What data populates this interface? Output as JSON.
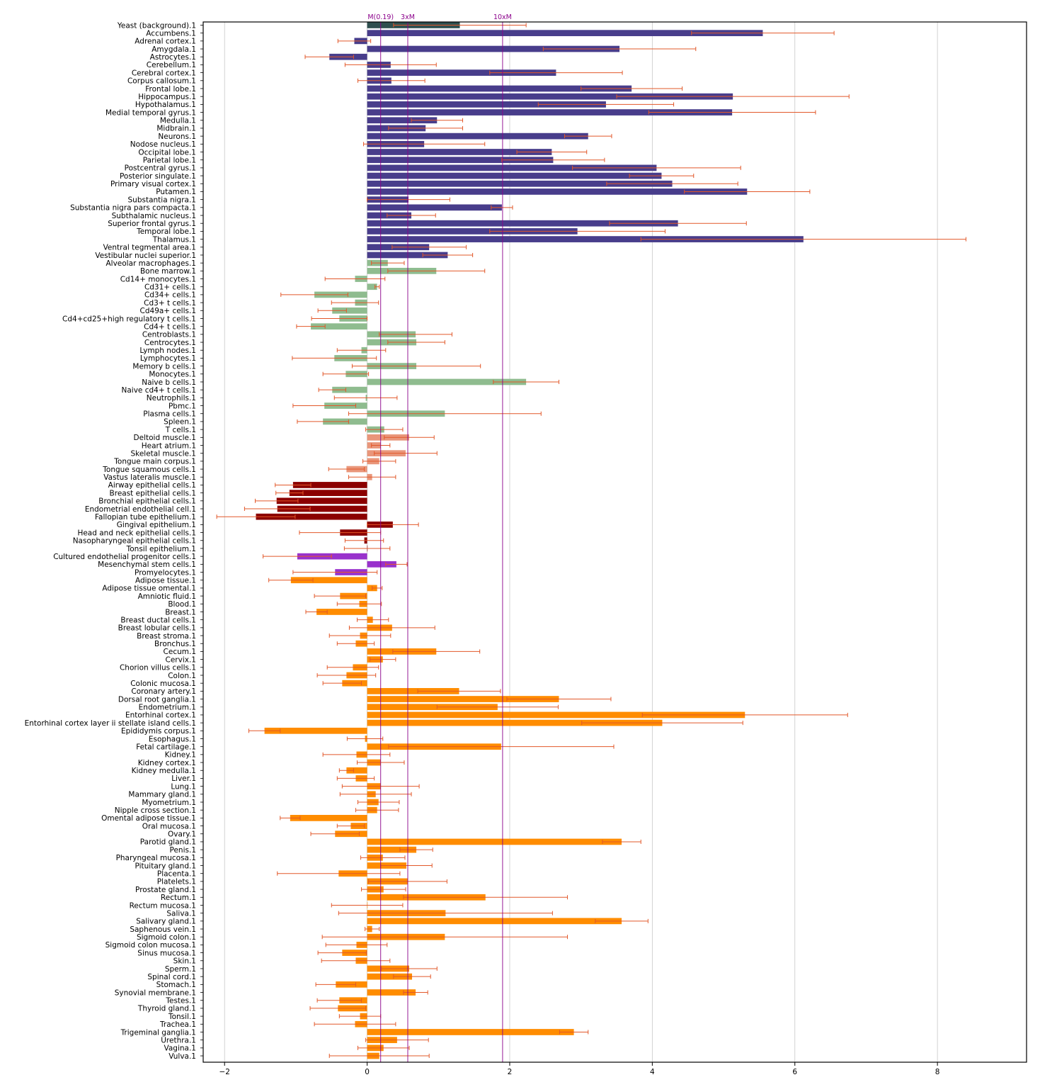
{
  "chart_data": {
    "type": "bar",
    "orientation": "horizontal",
    "title": "",
    "xlabel": "",
    "ylabel": "",
    "xlim": [
      -2.3,
      9.25
    ],
    "x_ticks": [
      -2,
      0,
      2,
      4,
      6,
      8
    ],
    "grid": "vertical",
    "legend": "none",
    "colors": {
      "background": "#2f4f4f",
      "brain": "#483d8b",
      "immune": "#8fbc8f",
      "muscle": "#e9967a",
      "epithelial": "#8b0000",
      "stem": "#9932cc",
      "other": "#ff8c00",
      "error": "#e2582a",
      "reference": "#8b008b",
      "grid": "#c8c8c8"
    },
    "reference_lines": [
      {
        "label": "M(0.19)",
        "x": 0.19
      },
      {
        "label": "3xM",
        "x": 0.57
      },
      {
        "label": "10xM",
        "x": 1.9
      }
    ],
    "bars": [
      {
        "label": "Yeast (background).1",
        "value": 1.3,
        "err": 0.93,
        "group": "background"
      },
      {
        "label": "Accumbens.1",
        "value": 5.55,
        "err": 1.0,
        "group": "brain"
      },
      {
        "label": "Adrenal cortex.1",
        "value": -0.18,
        "err": 0.23,
        "group": "brain"
      },
      {
        "label": "Amygdala.1",
        "value": 3.54,
        "err": 1.07,
        "group": "brain"
      },
      {
        "label": "Astrocytes.1",
        "value": -0.53,
        "err": 0.34,
        "group": "brain"
      },
      {
        "label": "Cerebellum.1",
        "value": 0.33,
        "err": 0.64,
        "group": "brain"
      },
      {
        "label": "Cerebral cortex.1",
        "value": 2.65,
        "err": 0.93,
        "group": "brain"
      },
      {
        "label": "Corpus callosum.1",
        "value": 0.34,
        "err": 0.47,
        "group": "brain"
      },
      {
        "label": "Frontal lobe.1",
        "value": 3.71,
        "err": 0.71,
        "group": "brain"
      },
      {
        "label": "Hippocampus.1",
        "value": 5.13,
        "err": 1.63,
        "group": "brain"
      },
      {
        "label": "Hypothalamus.1",
        "value": 3.35,
        "err": 0.95,
        "group": "brain"
      },
      {
        "label": "Medial temporal gyrus.1",
        "value": 5.12,
        "err": 1.17,
        "group": "brain"
      },
      {
        "label": "Medulla.1",
        "value": 0.98,
        "err": 0.36,
        "group": "brain"
      },
      {
        "label": "Midbrain.1",
        "value": 0.82,
        "err": 0.52,
        "group": "brain"
      },
      {
        "label": "Neurons.1",
        "value": 3.1,
        "err": 0.33,
        "group": "brain"
      },
      {
        "label": "Nodose nucleus.1",
        "value": 0.8,
        "err": 0.85,
        "group": "brain"
      },
      {
        "label": "Occipital lobe.1",
        "value": 2.59,
        "err": 0.49,
        "group": "brain"
      },
      {
        "label": "Parietal lobe.1",
        "value": 2.61,
        "err": 0.72,
        "group": "brain"
      },
      {
        "label": "Postcentral gyrus.1",
        "value": 4.06,
        "err": 1.18,
        "group": "brain"
      },
      {
        "label": "Posterior singulate.1",
        "value": 4.13,
        "err": 0.45,
        "group": "brain"
      },
      {
        "label": "Primary visual cortex.1",
        "value": 4.28,
        "err": 0.92,
        "group": "brain"
      },
      {
        "label": "Putamen.1",
        "value": 5.33,
        "err": 0.88,
        "group": "brain"
      },
      {
        "label": "Substantia nigra.1",
        "value": 0.58,
        "err": 0.58,
        "group": "brain"
      },
      {
        "label": "Substantia nigra pars compacta.1",
        "value": 1.89,
        "err": 0.15,
        "group": "brain"
      },
      {
        "label": "Subthalamic nucleus.1",
        "value": 0.62,
        "err": 0.34,
        "group": "brain"
      },
      {
        "label": "Superior frontal gyrus.1",
        "value": 4.36,
        "err": 0.96,
        "group": "brain"
      },
      {
        "label": "Temporal lobe.1",
        "value": 2.95,
        "err": 1.23,
        "group": "brain"
      },
      {
        "label": "Thalamus.1",
        "value": 6.12,
        "err": 2.28,
        "group": "brain"
      },
      {
        "label": "Ventral tegmental area.1",
        "value": 0.87,
        "err": 0.52,
        "group": "brain"
      },
      {
        "label": "Vestibular nuclei superior.1",
        "value": 1.13,
        "err": 0.35,
        "group": "brain"
      },
      {
        "label": "Alveolar macrophages.1",
        "value": 0.29,
        "err": 0.23,
        "group": "immune"
      },
      {
        "label": "Bone marrow.1",
        "value": 0.97,
        "err": 0.68,
        "group": "immune"
      },
      {
        "label": "Cd14+ monocytes.1",
        "value": -0.17,
        "err": 0.42,
        "group": "immune"
      },
      {
        "label": "Cd31+ cells.1",
        "value": 0.14,
        "err": 0.03,
        "group": "immune"
      },
      {
        "label": "Cd34+ cells.1",
        "value": -0.74,
        "err": 0.47,
        "group": "immune"
      },
      {
        "label": "Cd3+ t cells.1",
        "value": -0.17,
        "err": 0.33,
        "group": "immune"
      },
      {
        "label": "Cd49a+ cells.1",
        "value": -0.49,
        "err": 0.2,
        "group": "immune"
      },
      {
        "label": "Cd4+cd25+high regulatory t cells.1",
        "value": -0.39,
        "err": 0.39,
        "group": "immune"
      },
      {
        "label": "Cd4+ t cells.1",
        "value": -0.79,
        "err": 0.2,
        "group": "immune"
      },
      {
        "label": "Centroblasts.1",
        "value": 0.68,
        "err": 0.51,
        "group": "immune"
      },
      {
        "label": "Centrocytes.1",
        "value": 0.69,
        "err": 0.4,
        "group": "immune"
      },
      {
        "label": "Lymph nodes.1",
        "value": -0.08,
        "err": 0.34,
        "group": "immune"
      },
      {
        "label": "Lymphocytes.1",
        "value": -0.46,
        "err": 0.59,
        "group": "immune"
      },
      {
        "label": "Memory b cells.1",
        "value": 0.69,
        "err": 0.9,
        "group": "immune"
      },
      {
        "label": "Monocytes.1",
        "value": -0.3,
        "err": 0.32,
        "group": "immune"
      },
      {
        "label": "Naive b cells.1",
        "value": 2.23,
        "err": 0.46,
        "group": "immune"
      },
      {
        "label": "Naive cd4+ t cells.1",
        "value": -0.49,
        "err": 0.19,
        "group": "immune"
      },
      {
        "label": "Neutrophils.1",
        "value": -0.02,
        "err": 0.44,
        "group": "immune"
      },
      {
        "label": "Pbmc.1",
        "value": -0.6,
        "err": 0.44,
        "group": "immune"
      },
      {
        "label": "Plasma cells.1",
        "value": 1.09,
        "err": 1.35,
        "group": "immune"
      },
      {
        "label": "Spleen.1",
        "value": -0.62,
        "err": 0.36,
        "group": "immune"
      },
      {
        "label": "T cells.1",
        "value": 0.24,
        "err": 0.26,
        "group": "immune"
      },
      {
        "label": "Deltoid muscle.1",
        "value": 0.59,
        "err": 0.35,
        "group": "muscle"
      },
      {
        "label": "Heart atrium.1",
        "value": 0.19,
        "err": 0.13,
        "group": "muscle"
      },
      {
        "label": "Skeletal muscle.1",
        "value": 0.54,
        "err": 0.44,
        "group": "muscle"
      },
      {
        "label": "Tongue main corpus.1",
        "value": 0.17,
        "err": 0.23,
        "group": "muscle"
      },
      {
        "label": "Tongue squamous cells.1",
        "value": -0.29,
        "err": 0.25,
        "group": "muscle"
      },
      {
        "label": "Vastus lateralis muscle.1",
        "value": 0.07,
        "err": 0.33,
        "group": "muscle"
      },
      {
        "label": "Airway epithelial cells.1",
        "value": -1.04,
        "err": 0.25,
        "group": "epithelial"
      },
      {
        "label": "Breast epithelial cells.1",
        "value": -1.09,
        "err": 0.19,
        "group": "epithelial"
      },
      {
        "label": "Bronchial epithelial cells.1",
        "value": -1.27,
        "err": 0.3,
        "group": "epithelial"
      },
      {
        "label": "Endometrial endothelial cell.1",
        "value": -1.26,
        "err": 0.46,
        "group": "epithelial"
      },
      {
        "label": "Fallopian tube epithelium.1",
        "value": -1.56,
        "err": 0.55,
        "group": "epithelial"
      },
      {
        "label": "Gingival epithelium.1",
        "value": 0.36,
        "err": 0.36,
        "group": "epithelial"
      },
      {
        "label": "Head and neck epithelial cells.1",
        "value": -0.38,
        "err": 0.57,
        "group": "epithelial"
      },
      {
        "label": "Nasopharyngeal epithelial cells.1",
        "value": -0.04,
        "err": 0.27,
        "group": "epithelial"
      },
      {
        "label": "Tonsil epithelium.1",
        "value": 0.0,
        "err": 0.32,
        "group": "epithelial"
      },
      {
        "label": "Cultured endothelial progenitor cells.1",
        "value": -0.98,
        "err": 0.48,
        "group": "stem"
      },
      {
        "label": "Mesenchymal stem cells.1",
        "value": 0.41,
        "err": 0.15,
        "group": "stem"
      },
      {
        "label": "Promyelocytes.1",
        "value": -0.45,
        "err": 0.59,
        "group": "stem"
      },
      {
        "label": "Adipose tissue.1",
        "value": -1.07,
        "err": 0.31,
        "group": "other"
      },
      {
        "label": "Adipose tissue omental.1",
        "value": 0.14,
        "err": 0.07,
        "group": "other"
      },
      {
        "label": "Amniotic fluid.1",
        "value": -0.38,
        "err": 0.36,
        "group": "other"
      },
      {
        "label": "Blood.1",
        "value": -0.11,
        "err": 0.31,
        "group": "other"
      },
      {
        "label": "Breast.1",
        "value": -0.71,
        "err": 0.15,
        "group": "other"
      },
      {
        "label": "Breast ductal cells.1",
        "value": 0.08,
        "err": 0.22,
        "group": "other"
      },
      {
        "label": "Breast lobular cells.1",
        "value": 0.35,
        "err": 0.6,
        "group": "other"
      },
      {
        "label": "Breast stroma.1",
        "value": -0.1,
        "err": 0.43,
        "group": "other"
      },
      {
        "label": "Bronchus.1",
        "value": -0.16,
        "err": 0.26,
        "group": "other"
      },
      {
        "label": "Cecum.1",
        "value": 0.97,
        "err": 0.61,
        "group": "other"
      },
      {
        "label": "Cervix.1",
        "value": 0.22,
        "err": 0.18,
        "group": "other"
      },
      {
        "label": "Chorion villus cells.1",
        "value": -0.2,
        "err": 0.36,
        "group": "other"
      },
      {
        "label": "Colon.1",
        "value": -0.29,
        "err": 0.41,
        "group": "other"
      },
      {
        "label": "Colonic mucosa.1",
        "value": -0.35,
        "err": 0.27,
        "group": "other"
      },
      {
        "label": "Coronary artery.1",
        "value": 1.29,
        "err": 0.58,
        "group": "other"
      },
      {
        "label": "Dorsal root ganglia.1",
        "value": 2.69,
        "err": 0.73,
        "group": "other"
      },
      {
        "label": "Endometrium.1",
        "value": 1.83,
        "err": 0.85,
        "group": "other"
      },
      {
        "label": "Entorhinal cortex.1",
        "value": 5.3,
        "err": 1.44,
        "group": "other"
      },
      {
        "label": "Entorhinal cortex layer ii stellate island cells.1",
        "value": 4.14,
        "err": 1.13,
        "group": "other"
      },
      {
        "label": "Epididymis corpus.1",
        "value": -1.44,
        "err": 0.22,
        "group": "other"
      },
      {
        "label": "Esophagus.1",
        "value": -0.03,
        "err": 0.25,
        "group": "other"
      },
      {
        "label": "Fetal cartilage.1",
        "value": 1.88,
        "err": 1.58,
        "group": "other"
      },
      {
        "label": "Kidney.1",
        "value": -0.15,
        "err": 0.47,
        "group": "other"
      },
      {
        "label": "Kidney cortex.1",
        "value": 0.19,
        "err": 0.33,
        "group": "other"
      },
      {
        "label": "Kidney medulla.1",
        "value": -0.29,
        "err": 0.1,
        "group": "other"
      },
      {
        "label": "Liver.1",
        "value": -0.16,
        "err": 0.26,
        "group": "other"
      },
      {
        "label": "Lung.1",
        "value": 0.19,
        "err": 0.54,
        "group": "other"
      },
      {
        "label": "Mammary gland.1",
        "value": 0.12,
        "err": 0.5,
        "group": "other"
      },
      {
        "label": "Myometrium.1",
        "value": 0.16,
        "err": 0.29,
        "group": "other"
      },
      {
        "label": "Nipple cross section.1",
        "value": 0.14,
        "err": 0.3,
        "group": "other"
      },
      {
        "label": "Omental adipose tissue.1",
        "value": -1.08,
        "err": 0.14,
        "group": "other"
      },
      {
        "label": "Oral mucosa.1",
        "value": -0.23,
        "err": 0.19,
        "group": "other"
      },
      {
        "label": "Ovary.1",
        "value": -0.45,
        "err": 0.34,
        "group": "other"
      },
      {
        "label": "Parotid gland.1",
        "value": 3.57,
        "err": 0.27,
        "group": "other"
      },
      {
        "label": "Penis.1",
        "value": 0.69,
        "err": 0.23,
        "group": "other"
      },
      {
        "label": "Pharyngeal mucosa.1",
        "value": 0.22,
        "err": 0.31,
        "group": "other"
      },
      {
        "label": "Pituitary gland.1",
        "value": 0.55,
        "err": 0.36,
        "group": "other"
      },
      {
        "label": "Placenta.1",
        "value": -0.4,
        "err": 0.86,
        "group": "other"
      },
      {
        "label": "Platelets.1",
        "value": 0.57,
        "err": 0.55,
        "group": "other"
      },
      {
        "label": "Prostate gland.1",
        "value": 0.23,
        "err": 0.31,
        "group": "other"
      },
      {
        "label": "Rectum.1",
        "value": 1.66,
        "err": 1.15,
        "group": "other"
      },
      {
        "label": "Rectum mucosa.1",
        "value": 0.0,
        "err": 0.5,
        "group": "other"
      },
      {
        "label": "Saliva.1",
        "value": 1.1,
        "err": 1.5,
        "group": "other"
      },
      {
        "label": "Salivary gland.1",
        "value": 3.57,
        "err": 0.37,
        "group": "other"
      },
      {
        "label": "Saphenous vein.1",
        "value": 0.07,
        "err": 0.1,
        "group": "other"
      },
      {
        "label": "Sigmoid colon.1",
        "value": 1.09,
        "err": 1.72,
        "group": "other"
      },
      {
        "label": "Sigmoid colon mucosa.1",
        "value": -0.15,
        "err": 0.43,
        "group": "other"
      },
      {
        "label": "Sinus mucosa.1",
        "value": -0.35,
        "err": 0.34,
        "group": "other"
      },
      {
        "label": "Skin.1",
        "value": -0.16,
        "err": 0.48,
        "group": "other"
      },
      {
        "label": "Sperm.1",
        "value": 0.59,
        "err": 0.39,
        "group": "other"
      },
      {
        "label": "Spinal cord.1",
        "value": 0.63,
        "err": 0.26,
        "group": "other"
      },
      {
        "label": "Stomach.1",
        "value": -0.44,
        "err": 0.28,
        "group": "other"
      },
      {
        "label": "Synovial membrane.1",
        "value": 0.68,
        "err": 0.17,
        "group": "other"
      },
      {
        "label": "Testes.1",
        "value": -0.39,
        "err": 0.31,
        "group": "other"
      },
      {
        "label": "Thyroid gland.1",
        "value": -0.41,
        "err": 0.39,
        "group": "other"
      },
      {
        "label": "Tonsil.1",
        "value": -0.1,
        "err": 0.29,
        "group": "other"
      },
      {
        "label": "Trachea.1",
        "value": -0.17,
        "err": 0.57,
        "group": "other"
      },
      {
        "label": "Trigeminal ganglia.1",
        "value": 2.9,
        "err": 0.2,
        "group": "other"
      },
      {
        "label": "Urethra.1",
        "value": 0.42,
        "err": 0.44,
        "group": "other"
      },
      {
        "label": "Vagina.1",
        "value": 0.23,
        "err": 0.36,
        "group": "other"
      },
      {
        "label": "Vulva.1",
        "value": 0.17,
        "err": 0.7,
        "group": "other"
      }
    ]
  }
}
